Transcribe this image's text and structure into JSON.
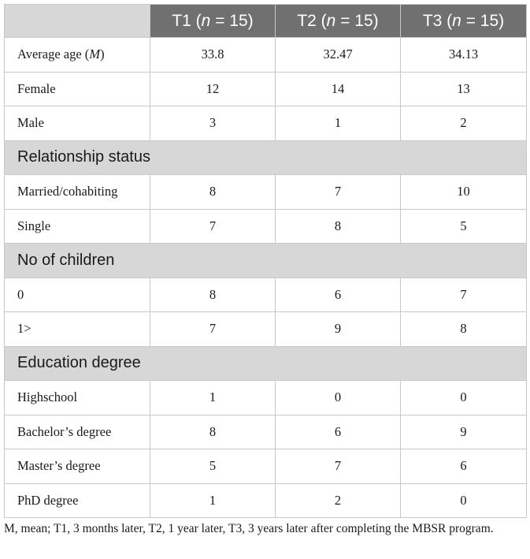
{
  "table": {
    "header": {
      "blank": "",
      "t1": {
        "prefix": "T1 (",
        "n": "n",
        "suffix": " = 15)"
      },
      "t2": {
        "prefix": "T2 (",
        "n": "n",
        "suffix": " = 15)"
      },
      "t3": {
        "prefix": "T3 (",
        "n": "n",
        "suffix": " = 15)"
      }
    },
    "rows": [
      {
        "kind": "data",
        "label": "Average age (",
        "label_italic": "M",
        "label_suffix": ")",
        "t1": "33.8",
        "t2": "32.47",
        "t3": "34.13"
      },
      {
        "kind": "data",
        "label": "Female",
        "t1": "12",
        "t2": "14",
        "t3": "13"
      },
      {
        "kind": "data",
        "label": "Male",
        "t1": "3",
        "t2": "1",
        "t3": "2"
      },
      {
        "kind": "section",
        "label": "Relationship status"
      },
      {
        "kind": "data",
        "label": "Married/cohabiting",
        "t1": "8",
        "t2": "7",
        "t3": "10"
      },
      {
        "kind": "data",
        "label": "Single",
        "t1": "7",
        "t2": "8",
        "t3": "5"
      },
      {
        "kind": "section",
        "label": "No of children"
      },
      {
        "kind": "data",
        "label": "0",
        "t1": "8",
        "t2": "6",
        "t3": "7"
      },
      {
        "kind": "data",
        "label": "1>",
        "t1": "7",
        "t2": "9",
        "t3": "8"
      },
      {
        "kind": "section",
        "label": "Education degree"
      },
      {
        "kind": "data",
        "label": "Highschool",
        "t1": "1",
        "t2": "0",
        "t3": "0"
      },
      {
        "kind": "data",
        "label": "Bachelor’s degree",
        "t1": "8",
        "t2": "6",
        "t3": "9"
      },
      {
        "kind": "data",
        "label": "Master’s degree",
        "t1": "5",
        "t2": "7",
        "t3": "6"
      },
      {
        "kind": "data",
        "label": "PhD degree",
        "t1": "1",
        "t2": "2",
        "t3": "0"
      }
    ]
  },
  "footnote": "M, mean; T1, 3 months later, T2, 1 year later, T3, 3 years later after completing the MBSR program."
}
